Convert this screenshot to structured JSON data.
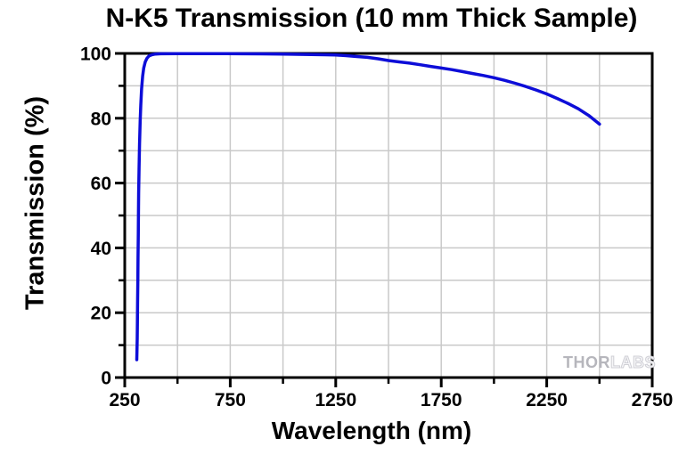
{
  "chart_data": {
    "type": "line",
    "title": "N-K5 Transmission (10 mm Thick Sample)",
    "xlabel": "Wavelength (nm)",
    "ylabel": "Transmission (%)",
    "xlim": [
      250,
      2750
    ],
    "ylim": [
      0,
      100
    ],
    "x_major_ticks": [
      250,
      750,
      1250,
      1750,
      2250,
      2750
    ],
    "x_minor_ticks": [
      500,
      1000,
      1500,
      2000,
      2500
    ],
    "y_major_ticks": [
      0,
      20,
      40,
      60,
      80,
      100
    ],
    "y_minor_ticks": [
      10,
      30,
      50,
      70,
      90
    ],
    "grid": true,
    "grid_color": "#c9c9c9",
    "axis_color": "#000000",
    "background_color": "#ffffff",
    "legend": "none",
    "series": [
      {
        "name": "N-K5 transmission, 10 mm thick sample",
        "color": "#0d0dd8",
        "points": [
          [
            307,
            5.5
          ],
          [
            308,
            8
          ],
          [
            309,
            12
          ],
          [
            310,
            17
          ],
          [
            311,
            23
          ],
          [
            312,
            30
          ],
          [
            313,
            37
          ],
          [
            314,
            44
          ],
          [
            315,
            51
          ],
          [
            316,
            57
          ],
          [
            318,
            65
          ],
          [
            320,
            72
          ],
          [
            323,
            79
          ],
          [
            326,
            84
          ],
          [
            330,
            89
          ],
          [
            335,
            93
          ],
          [
            340,
            95.5
          ],
          [
            347,
            97.4
          ],
          [
            355,
            98.5
          ],
          [
            365,
            99.2
          ],
          [
            378,
            99.6
          ],
          [
            395,
            99.8
          ],
          [
            420,
            99.9
          ],
          [
            500,
            99.95
          ],
          [
            600,
            99.95
          ],
          [
            700,
            99.95
          ],
          [
            800,
            99.9
          ],
          [
            900,
            99.85
          ],
          [
            1000,
            99.8
          ],
          [
            1100,
            99.7
          ],
          [
            1200,
            99.6
          ],
          [
            1250,
            99.5
          ],
          [
            1300,
            99.3
          ],
          [
            1350,
            99.05
          ],
          [
            1400,
            98.8
          ],
          [
            1450,
            98.35
          ],
          [
            1500,
            97.8
          ],
          [
            1550,
            97.4
          ],
          [
            1600,
            97.0
          ],
          [
            1650,
            96.5
          ],
          [
            1700,
            96.0
          ],
          [
            1750,
            95.5
          ],
          [
            1800,
            95.0
          ],
          [
            1850,
            94.4
          ],
          [
            1900,
            93.8
          ],
          [
            1950,
            93.2
          ],
          [
            2000,
            92.5
          ],
          [
            2050,
            91.7
          ],
          [
            2100,
            90.8
          ],
          [
            2150,
            89.8
          ],
          [
            2200,
            88.7
          ],
          [
            2250,
            87.5
          ],
          [
            2300,
            86.1
          ],
          [
            2350,
            84.6
          ],
          [
            2400,
            82.9
          ],
          [
            2450,
            80.8
          ],
          [
            2500,
            78.2
          ]
        ]
      }
    ],
    "watermark": {
      "part1": "THOR",
      "part2": "LABS"
    }
  }
}
